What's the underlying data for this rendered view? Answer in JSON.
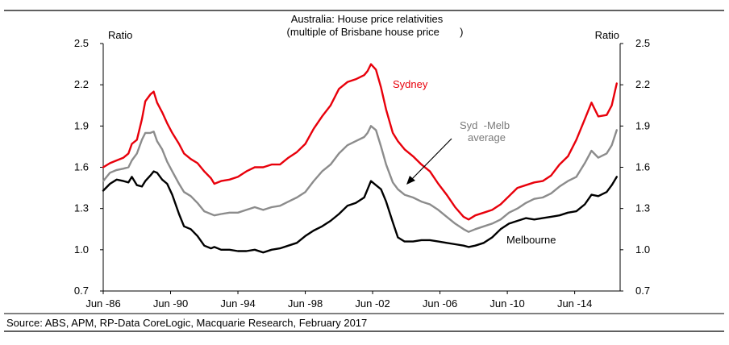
{
  "chart_data": {
    "type": "line",
    "title": "Australia: House price relativities",
    "subtitle": "(multiple of Brisbane house price       )",
    "ylabel_left": "Ratio",
    "ylabel_right": "Ratio",
    "ylim": [
      0.7,
      2.5
    ],
    "yticks": [
      "2.5",
      "2.2",
      "1.9",
      "1.6",
      "1.3",
      "1.0",
      "0.7"
    ],
    "xlim": [
      1986.4,
      2017.1
    ],
    "xticks": [
      {
        "x": 1986.4,
        "label": "Jun  -86"
      },
      {
        "x": 1990.4,
        "label": "Jun  -90"
      },
      {
        "x": 1994.4,
        "label": "Jun  -94"
      },
      {
        "x": 1998.4,
        "label": "Jun  -98"
      },
      {
        "x": 2002.4,
        "label": "Jun  -02"
      },
      {
        "x": 2006.4,
        "label": "Jun  -06"
      },
      {
        "x": 2010.4,
        "label": "Jun  -10"
      },
      {
        "x": 2014.4,
        "label": "Jun  -14"
      }
    ],
    "source": "Source: ABS, APM, RP-Data CoreLogic, Macquarie Research, February 2017",
    "annotations": {
      "sydney": "Sydney",
      "melbourne": "Melbourne",
      "average_line1": "Syd  -Melb",
      "average_line2": "average"
    },
    "colors": {
      "sydney": "#e8000b",
      "average": "#8c8c8c",
      "melbourne": "#000000"
    },
    "series": [
      {
        "name": "Sydney",
        "points": [
          [
            1986.4,
            1.6
          ],
          [
            1986.8,
            1.63
          ],
          [
            1987.2,
            1.65
          ],
          [
            1987.6,
            1.67
          ],
          [
            1987.9,
            1.7
          ],
          [
            1988.1,
            1.77
          ],
          [
            1988.4,
            1.8
          ],
          [
            1988.7,
            1.95
          ],
          [
            1988.9,
            2.08
          ],
          [
            1989.2,
            2.13
          ],
          [
            1989.4,
            2.15
          ],
          [
            1989.6,
            2.07
          ],
          [
            1989.9,
            2.0
          ],
          [
            1990.2,
            1.92
          ],
          [
            1990.5,
            1.85
          ],
          [
            1990.9,
            1.77
          ],
          [
            1991.2,
            1.7
          ],
          [
            1991.6,
            1.66
          ],
          [
            1992.0,
            1.63
          ],
          [
            1992.4,
            1.57
          ],
          [
            1992.8,
            1.52
          ],
          [
            1993.0,
            1.48
          ],
          [
            1993.4,
            1.5
          ],
          [
            1993.9,
            1.51
          ],
          [
            1994.4,
            1.53
          ],
          [
            1994.9,
            1.57
          ],
          [
            1995.4,
            1.6
          ],
          [
            1995.9,
            1.6
          ],
          [
            1996.4,
            1.62
          ],
          [
            1996.9,
            1.62
          ],
          [
            1997.4,
            1.67
          ],
          [
            1997.9,
            1.71
          ],
          [
            1998.4,
            1.77
          ],
          [
            1998.9,
            1.88
          ],
          [
            1999.4,
            1.97
          ],
          [
            1999.9,
            2.05
          ],
          [
            2000.4,
            2.17
          ],
          [
            2000.9,
            2.22
          ],
          [
            2001.4,
            2.24
          ],
          [
            2001.9,
            2.27
          ],
          [
            2002.1,
            2.3
          ],
          [
            2002.3,
            2.35
          ],
          [
            2002.6,
            2.31
          ],
          [
            2002.9,
            2.18
          ],
          [
            2003.2,
            2.02
          ],
          [
            2003.6,
            1.85
          ],
          [
            2003.9,
            1.79
          ],
          [
            2004.3,
            1.73
          ],
          [
            2004.8,
            1.68
          ],
          [
            2005.3,
            1.62
          ],
          [
            2005.8,
            1.57
          ],
          [
            2006.3,
            1.48
          ],
          [
            2006.8,
            1.4
          ],
          [
            2007.3,
            1.31
          ],
          [
            2007.8,
            1.24
          ],
          [
            2008.1,
            1.22
          ],
          [
            2008.5,
            1.25
          ],
          [
            2009.0,
            1.27
          ],
          [
            2009.5,
            1.29
          ],
          [
            2010.0,
            1.33
          ],
          [
            2010.5,
            1.39
          ],
          [
            2011.0,
            1.45
          ],
          [
            2011.5,
            1.47
          ],
          [
            2012.0,
            1.49
          ],
          [
            2012.5,
            1.5
          ],
          [
            2013.0,
            1.54
          ],
          [
            2013.5,
            1.62
          ],
          [
            2014.0,
            1.68
          ],
          [
            2014.5,
            1.8
          ],
          [
            2015.0,
            1.95
          ],
          [
            2015.4,
            2.07
          ],
          [
            2015.8,
            1.97
          ],
          [
            2016.3,
            1.98
          ],
          [
            2016.6,
            2.05
          ],
          [
            2016.9,
            2.21
          ]
        ]
      },
      {
        "name": "Syd-Melb average",
        "points": [
          [
            1986.4,
            1.5
          ],
          [
            1986.8,
            1.56
          ],
          [
            1987.2,
            1.58
          ],
          [
            1987.6,
            1.59
          ],
          [
            1987.9,
            1.6
          ],
          [
            1988.1,
            1.65
          ],
          [
            1988.4,
            1.7
          ],
          [
            1988.7,
            1.8
          ],
          [
            1988.9,
            1.85
          ],
          [
            1989.2,
            1.85
          ],
          [
            1989.4,
            1.86
          ],
          [
            1989.6,
            1.79
          ],
          [
            1989.9,
            1.73
          ],
          [
            1990.2,
            1.64
          ],
          [
            1990.5,
            1.57
          ],
          [
            1990.9,
            1.48
          ],
          [
            1991.2,
            1.42
          ],
          [
            1991.6,
            1.39
          ],
          [
            1992.0,
            1.34
          ],
          [
            1992.4,
            1.28
          ],
          [
            1992.8,
            1.26
          ],
          [
            1993.0,
            1.25
          ],
          [
            1993.4,
            1.26
          ],
          [
            1993.9,
            1.27
          ],
          [
            1994.4,
            1.27
          ],
          [
            1994.9,
            1.29
          ],
          [
            1995.4,
            1.31
          ],
          [
            1995.9,
            1.29
          ],
          [
            1996.4,
            1.31
          ],
          [
            1996.9,
            1.32
          ],
          [
            1997.4,
            1.35
          ],
          [
            1997.9,
            1.38
          ],
          [
            1998.4,
            1.42
          ],
          [
            1998.9,
            1.5
          ],
          [
            1999.4,
            1.57
          ],
          [
            1999.9,
            1.62
          ],
          [
            2000.4,
            1.7
          ],
          [
            2000.9,
            1.76
          ],
          [
            2001.4,
            1.79
          ],
          [
            2001.9,
            1.82
          ],
          [
            2002.1,
            1.85
          ],
          [
            2002.3,
            1.9
          ],
          [
            2002.6,
            1.87
          ],
          [
            2002.9,
            1.75
          ],
          [
            2003.2,
            1.62
          ],
          [
            2003.6,
            1.49
          ],
          [
            2003.9,
            1.44
          ],
          [
            2004.3,
            1.4
          ],
          [
            2004.8,
            1.38
          ],
          [
            2005.3,
            1.35
          ],
          [
            2005.8,
            1.33
          ],
          [
            2006.3,
            1.29
          ],
          [
            2006.8,
            1.24
          ],
          [
            2007.3,
            1.19
          ],
          [
            2007.8,
            1.15
          ],
          [
            2008.1,
            1.13
          ],
          [
            2008.5,
            1.15
          ],
          [
            2009.0,
            1.17
          ],
          [
            2009.5,
            1.19
          ],
          [
            2010.0,
            1.22
          ],
          [
            2010.5,
            1.27
          ],
          [
            2011.0,
            1.3
          ],
          [
            2011.5,
            1.34
          ],
          [
            2012.0,
            1.37
          ],
          [
            2012.5,
            1.38
          ],
          [
            2013.0,
            1.41
          ],
          [
            2013.5,
            1.46
          ],
          [
            2014.0,
            1.5
          ],
          [
            2014.5,
            1.53
          ],
          [
            2015.0,
            1.63
          ],
          [
            2015.4,
            1.72
          ],
          [
            2015.8,
            1.67
          ],
          [
            2016.3,
            1.7
          ],
          [
            2016.6,
            1.76
          ],
          [
            2016.9,
            1.87
          ]
        ]
      },
      {
        "name": "Melbourne",
        "points": [
          [
            1986.4,
            1.43
          ],
          [
            1986.8,
            1.48
          ],
          [
            1987.2,
            1.51
          ],
          [
            1987.6,
            1.5
          ],
          [
            1987.9,
            1.49
          ],
          [
            1988.1,
            1.53
          ],
          [
            1988.4,
            1.47
          ],
          [
            1988.7,
            1.46
          ],
          [
            1988.9,
            1.5
          ],
          [
            1989.2,
            1.54
          ],
          [
            1989.4,
            1.57
          ],
          [
            1989.6,
            1.56
          ],
          [
            1989.9,
            1.51
          ],
          [
            1990.2,
            1.48
          ],
          [
            1990.5,
            1.4
          ],
          [
            1990.9,
            1.26
          ],
          [
            1991.2,
            1.17
          ],
          [
            1991.6,
            1.15
          ],
          [
            1992.0,
            1.1
          ],
          [
            1992.4,
            1.03
          ],
          [
            1992.8,
            1.01
          ],
          [
            1993.0,
            1.02
          ],
          [
            1993.4,
            1.0
          ],
          [
            1993.9,
            1.0
          ],
          [
            1994.4,
            0.99
          ],
          [
            1994.9,
            0.99
          ],
          [
            1995.4,
            1.0
          ],
          [
            1995.9,
            0.98
          ],
          [
            1996.4,
            1.0
          ],
          [
            1996.9,
            1.01
          ],
          [
            1997.4,
            1.03
          ],
          [
            1997.9,
            1.05
          ],
          [
            1998.4,
            1.1
          ],
          [
            1998.9,
            1.14
          ],
          [
            1999.4,
            1.17
          ],
          [
            1999.9,
            1.21
          ],
          [
            2000.4,
            1.26
          ],
          [
            2000.9,
            1.32
          ],
          [
            2001.4,
            1.34
          ],
          [
            2001.9,
            1.38
          ],
          [
            2002.1,
            1.44
          ],
          [
            2002.3,
            1.5
          ],
          [
            2002.6,
            1.47
          ],
          [
            2002.9,
            1.44
          ],
          [
            2003.2,
            1.35
          ],
          [
            2003.6,
            1.2
          ],
          [
            2003.9,
            1.09
          ],
          [
            2004.3,
            1.06
          ],
          [
            2004.8,
            1.06
          ],
          [
            2005.3,
            1.07
          ],
          [
            2005.8,
            1.07
          ],
          [
            2006.3,
            1.06
          ],
          [
            2006.8,
            1.05
          ],
          [
            2007.3,
            1.04
          ],
          [
            2007.8,
            1.03
          ],
          [
            2008.1,
            1.02
          ],
          [
            2008.5,
            1.03
          ],
          [
            2009.0,
            1.05
          ],
          [
            2009.5,
            1.09
          ],
          [
            2010.0,
            1.15
          ],
          [
            2010.5,
            1.19
          ],
          [
            2011.0,
            1.21
          ],
          [
            2011.5,
            1.23
          ],
          [
            2012.0,
            1.22
          ],
          [
            2012.5,
            1.23
          ],
          [
            2013.0,
            1.24
          ],
          [
            2013.5,
            1.25
          ],
          [
            2014.0,
            1.27
          ],
          [
            2014.5,
            1.28
          ],
          [
            2015.0,
            1.33
          ],
          [
            2015.4,
            1.4
          ],
          [
            2015.8,
            1.39
          ],
          [
            2016.3,
            1.42
          ],
          [
            2016.6,
            1.47
          ],
          [
            2016.9,
            1.53
          ]
        ]
      }
    ]
  }
}
